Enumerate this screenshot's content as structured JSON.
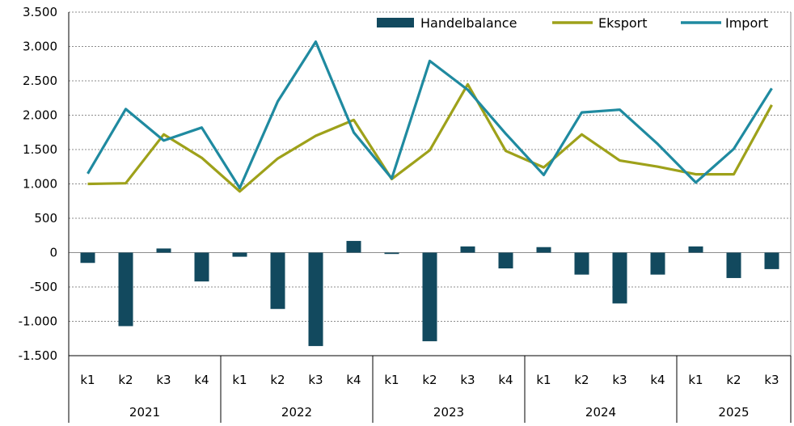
{
  "chart_data": {
    "type": "bar+line",
    "title": "",
    "xlabel": "",
    "ylabel": "",
    "ylim": [
      -1500,
      3500
    ],
    "yticks": [
      -1500,
      -1000,
      -500,
      0,
      500,
      1000,
      1500,
      2000,
      2500,
      3000,
      3500
    ],
    "ytick_labels": [
      "-1.500",
      "-1.000",
      "-500",
      "0",
      "500",
      "1.000",
      "1.500",
      "2.000",
      "2.500",
      "3.000",
      "3.500"
    ],
    "grid": true,
    "legend_position": "top-right",
    "categories": [
      "k1",
      "k2",
      "k3",
      "k4",
      "k1",
      "k2",
      "k3",
      "k4",
      "k1",
      "k2",
      "k3",
      "k4",
      "k1",
      "k2",
      "k3",
      "k4",
      "k1",
      "k2",
      "k3"
    ],
    "groups": [
      {
        "label": "2021",
        "count": 4
      },
      {
        "label": "2022",
        "count": 4
      },
      {
        "label": "2023",
        "count": 4
      },
      {
        "label": "2024",
        "count": 4
      },
      {
        "label": "2025",
        "count": 3
      }
    ],
    "series": [
      {
        "name": "Handelbalance",
        "type": "bar",
        "color": "#12495e",
        "values": [
          -150,
          -1070,
          60,
          -420,
          -60,
          -820,
          -1360,
          170,
          -20,
          -1290,
          90,
          -230,
          80,
          -320,
          -740,
          -320,
          90,
          -370,
          -240
        ]
      },
      {
        "name": "Eksport",
        "type": "line",
        "color": "#9ea11a",
        "values": [
          1000,
          1010,
          1720,
          1380,
          890,
          1370,
          1700,
          1930,
          1070,
          1490,
          2450,
          1480,
          1240,
          1720,
          1340,
          1250,
          1140,
          1140,
          2150
        ]
      },
      {
        "name": "Import",
        "type": "line",
        "color": "#1f8aa0",
        "values": [
          1150,
          2090,
          1630,
          1820,
          940,
          2200,
          3070,
          1750,
          1080,
          2790,
          2370,
          1730,
          1130,
          2040,
          2080,
          1580,
          1020,
          1510,
          2390
        ]
      }
    ]
  }
}
